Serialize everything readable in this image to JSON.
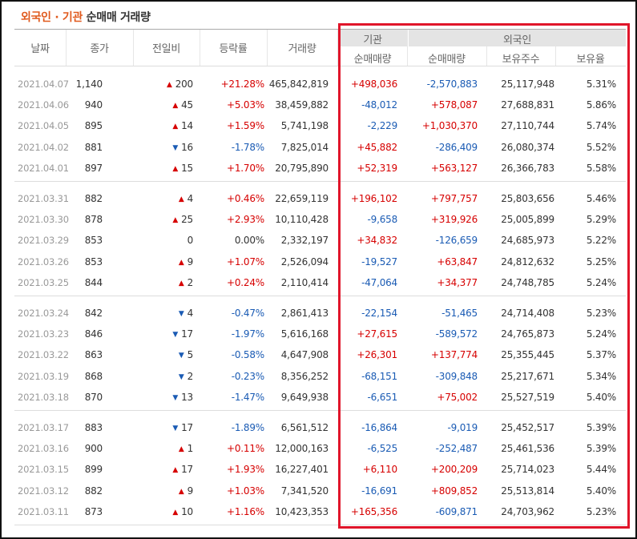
{
  "title": {
    "foreign": "외국인 · 기관",
    "rest": "순매매 거래량"
  },
  "headers": {
    "date": "날짜",
    "close": "종가",
    "change": "전일비",
    "rate": "등락률",
    "volume": "거래량",
    "institution": "기관",
    "foreigner": "외국인",
    "inst_net": "순매매량",
    "foreign_net": "순매매량",
    "holdings": "보유주수",
    "hold_ratio": "보유율"
  },
  "colors": {
    "up": "#d60000",
    "down": "#1a5bb4",
    "highlight_box": "#e0152a",
    "title_accent": "#e05a1e"
  },
  "rows": [
    {
      "date": "2021.04.07",
      "close": "1,140",
      "dir": "up",
      "chg": "200",
      "rate": "+21.28%",
      "vol": "465,842,819",
      "inst": "+498,036",
      "forn": "-2,570,883",
      "hold": "25,117,948",
      "pct": "5.31%"
    },
    {
      "date": "2021.04.06",
      "close": "940",
      "dir": "up",
      "chg": "45",
      "rate": "+5.03%",
      "vol": "38,459,882",
      "inst": "-48,012",
      "forn": "+578,087",
      "hold": "27,688,831",
      "pct": "5.86%"
    },
    {
      "date": "2021.04.05",
      "close": "895",
      "dir": "up",
      "chg": "14",
      "rate": "+1.59%",
      "vol": "5,741,198",
      "inst": "-2,229",
      "forn": "+1,030,370",
      "hold": "27,110,744",
      "pct": "5.74%"
    },
    {
      "date": "2021.04.02",
      "close": "881",
      "dir": "down",
      "chg": "16",
      "rate": "-1.78%",
      "vol": "7,825,014",
      "inst": "+45,882",
      "forn": "-286,409",
      "hold": "26,080,374",
      "pct": "5.52%"
    },
    {
      "date": "2021.04.01",
      "close": "897",
      "dir": "up",
      "chg": "15",
      "rate": "+1.70%",
      "vol": "20,795,890",
      "inst": "+52,319",
      "forn": "+563,127",
      "hold": "26,366,783",
      "pct": "5.58%"
    },
    {
      "date": "2021.03.31",
      "close": "882",
      "dir": "up",
      "chg": "4",
      "rate": "+0.46%",
      "vol": "22,659,119",
      "inst": "+196,102",
      "forn": "+797,757",
      "hold": "25,803,656",
      "pct": "5.46%"
    },
    {
      "date": "2021.03.30",
      "close": "878",
      "dir": "up",
      "chg": "25",
      "rate": "+2.93%",
      "vol": "10,110,428",
      "inst": "-9,658",
      "forn": "+319,926",
      "hold": "25,005,899",
      "pct": "5.29%"
    },
    {
      "date": "2021.03.29",
      "close": "853",
      "dir": "flat",
      "chg": "0",
      "rate": "0.00%",
      "vol": "2,332,197",
      "inst": "+34,832",
      "forn": "-126,659",
      "hold": "24,685,973",
      "pct": "5.22%"
    },
    {
      "date": "2021.03.26",
      "close": "853",
      "dir": "up",
      "chg": "9",
      "rate": "+1.07%",
      "vol": "2,526,094",
      "inst": "-19,527",
      "forn": "+63,847",
      "hold": "24,812,632",
      "pct": "5.25%"
    },
    {
      "date": "2021.03.25",
      "close": "844",
      "dir": "up",
      "chg": "2",
      "rate": "+0.24%",
      "vol": "2,110,414",
      "inst": "-47,064",
      "forn": "+34,377",
      "hold": "24,748,785",
      "pct": "5.24%"
    },
    {
      "date": "2021.03.24",
      "close": "842",
      "dir": "down",
      "chg": "4",
      "rate": "-0.47%",
      "vol": "2,861,413",
      "inst": "-22,154",
      "forn": "-51,465",
      "hold": "24,714,408",
      "pct": "5.23%"
    },
    {
      "date": "2021.03.23",
      "close": "846",
      "dir": "down",
      "chg": "17",
      "rate": "-1.97%",
      "vol": "5,616,168",
      "inst": "+27,615",
      "forn": "-589,572",
      "hold": "24,765,873",
      "pct": "5.24%"
    },
    {
      "date": "2021.03.22",
      "close": "863",
      "dir": "down",
      "chg": "5",
      "rate": "-0.58%",
      "vol": "4,647,908",
      "inst": "+26,301",
      "forn": "+137,774",
      "hold": "25,355,445",
      "pct": "5.37%"
    },
    {
      "date": "2021.03.19",
      "close": "868",
      "dir": "down",
      "chg": "2",
      "rate": "-0.23%",
      "vol": "8,356,252",
      "inst": "-68,151",
      "forn": "-309,848",
      "hold": "25,217,671",
      "pct": "5.34%"
    },
    {
      "date": "2021.03.18",
      "close": "870",
      "dir": "down",
      "chg": "13",
      "rate": "-1.47%",
      "vol": "9,649,938",
      "inst": "-6,651",
      "forn": "+75,002",
      "hold": "25,527,519",
      "pct": "5.40%"
    },
    {
      "date": "2021.03.17",
      "close": "883",
      "dir": "down",
      "chg": "17",
      "rate": "-1.89%",
      "vol": "6,561,512",
      "inst": "-16,864",
      "forn": "-9,019",
      "hold": "25,452,517",
      "pct": "5.39%"
    },
    {
      "date": "2021.03.16",
      "close": "900",
      "dir": "up",
      "chg": "1",
      "rate": "+0.11%",
      "vol": "12,000,163",
      "inst": "-6,525",
      "forn": "-252,487",
      "hold": "25,461,536",
      "pct": "5.39%"
    },
    {
      "date": "2021.03.15",
      "close": "899",
      "dir": "up",
      "chg": "17",
      "rate": "+1.93%",
      "vol": "16,227,401",
      "inst": "+6,110",
      "forn": "+200,209",
      "hold": "25,714,023",
      "pct": "5.44%"
    },
    {
      "date": "2021.03.12",
      "close": "882",
      "dir": "up",
      "chg": "9",
      "rate": "+1.03%",
      "vol": "7,341,520",
      "inst": "-16,691",
      "forn": "+809,852",
      "hold": "25,513,814",
      "pct": "5.40%"
    },
    {
      "date": "2021.03.11",
      "close": "873",
      "dir": "up",
      "chg": "10",
      "rate": "+1.16%",
      "vol": "10,423,353",
      "inst": "+165,356",
      "forn": "-609,871",
      "hold": "24,703,962",
      "pct": "5.23%"
    }
  ]
}
